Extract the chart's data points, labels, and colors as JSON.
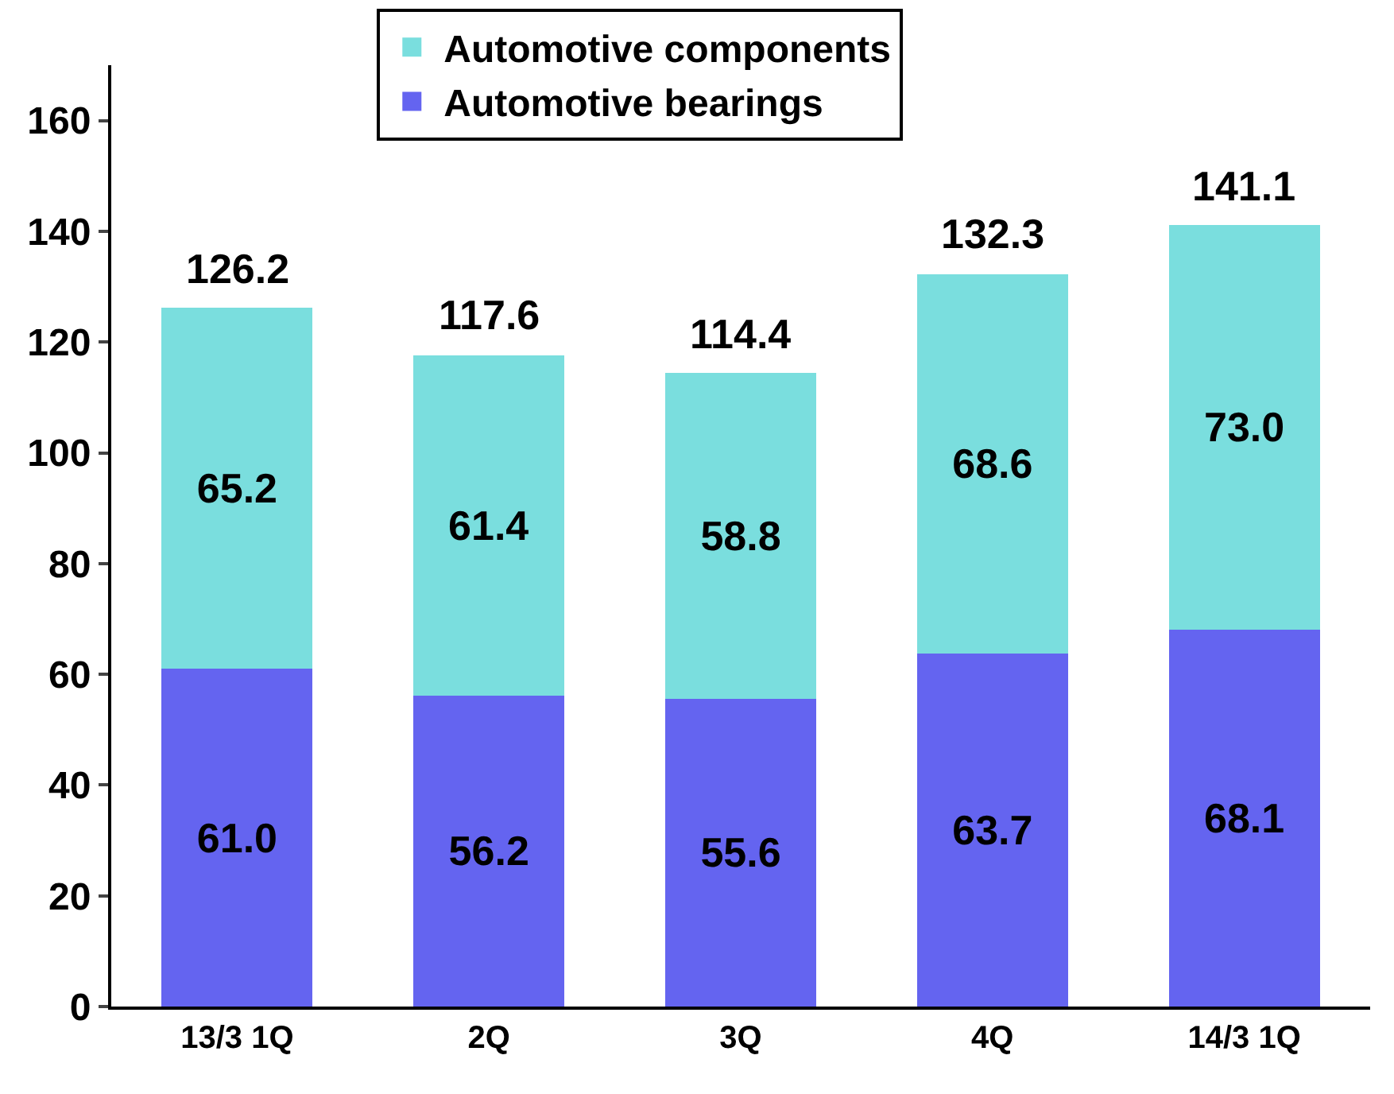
{
  "chart_data": {
    "type": "bar",
    "stacked": true,
    "categories": [
      "13/3 1Q",
      "2Q",
      "3Q",
      "4Q",
      "14/3 1Q"
    ],
    "series": [
      {
        "name": "Automotive bearings",
        "color": "#6464f0",
        "values": [
          61.0,
          56.2,
          55.6,
          63.7,
          68.1
        ],
        "value_labels": [
          "61.0",
          "56.2",
          "55.6",
          "63.7",
          "68.1"
        ]
      },
      {
        "name": "Automotive components",
        "color": "#7adede",
        "values": [
          65.2,
          61.4,
          58.8,
          68.6,
          73.0
        ],
        "value_labels": [
          "65.2",
          "61.4",
          "58.8",
          "68.6",
          "73.0"
        ]
      }
    ],
    "totals": [
      "126.2",
      "117.6",
      "114.4",
      "132.3",
      "141.1"
    ],
    "ylim": [
      0,
      170
    ],
    "yticks": [
      0,
      20,
      40,
      60,
      80,
      100,
      120,
      140,
      160
    ],
    "legend": "top"
  }
}
